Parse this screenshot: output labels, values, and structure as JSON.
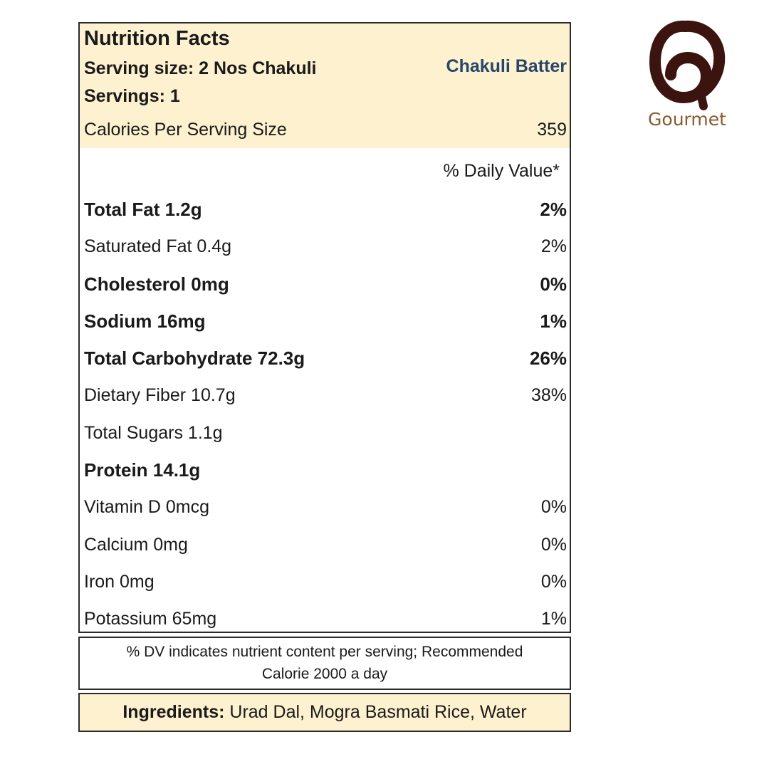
{
  "label": {
    "title": "Nutrition Facts",
    "serving_size": "Serving size: 2 Nos Chakuli",
    "product_name": "Chakuli Batter",
    "servings": "Servings: 1",
    "calories_label": "Calories Per Serving Size",
    "calories_value": "359",
    "dv_header": "% Daily Value*",
    "rows": [
      {
        "name": "Total Fat 1.2g",
        "pct": "2%",
        "bold": true
      },
      {
        "name": "Saturated Fat 0.4g",
        "pct": "2%",
        "bold": false
      },
      {
        "name": "Cholesterol 0mg",
        "pct": "0%",
        "bold": true
      },
      {
        "name": "Sodium 16mg",
        "pct": "1%",
        "bold": true
      },
      {
        "name": "Total Carbohydrate 72.3g",
        "pct": "26%",
        "bold": true
      },
      {
        "name": "Dietary Fiber 10.7g",
        "pct": "38%",
        "bold": false
      },
      {
        "name": "Total Sugars 1.1g",
        "pct": "",
        "bold": false
      },
      {
        "name": "Protein 14.1g",
        "pct": "",
        "bold": true
      },
      {
        "name": "Vitamin D 0mcg",
        "pct": "0%",
        "bold": false
      },
      {
        "name": "Calcium 0mg",
        "pct": "0%",
        "bold": false
      },
      {
        "name": "Iron 0mg",
        "pct": "0%",
        "bold": false
      },
      {
        "name": "Potassium 65mg",
        "pct": "1%",
        "bold": false
      }
    ]
  },
  "footnote": {
    "line1": "% DV indicates nutrient content per serving; Recommended",
    "line2": "Calorie 2000 a day"
  },
  "ingredients": {
    "label": "Ingredients:",
    "text": "Urad Dal, Mogra Basmati Rice, Water"
  },
  "logo": {
    "text": "Gourmet"
  },
  "colors": {
    "header_bg": "#fdf1cf",
    "product_name": "#26476b",
    "logo_mark": "#3b1410",
    "logo_text": "#8a5a2b"
  }
}
